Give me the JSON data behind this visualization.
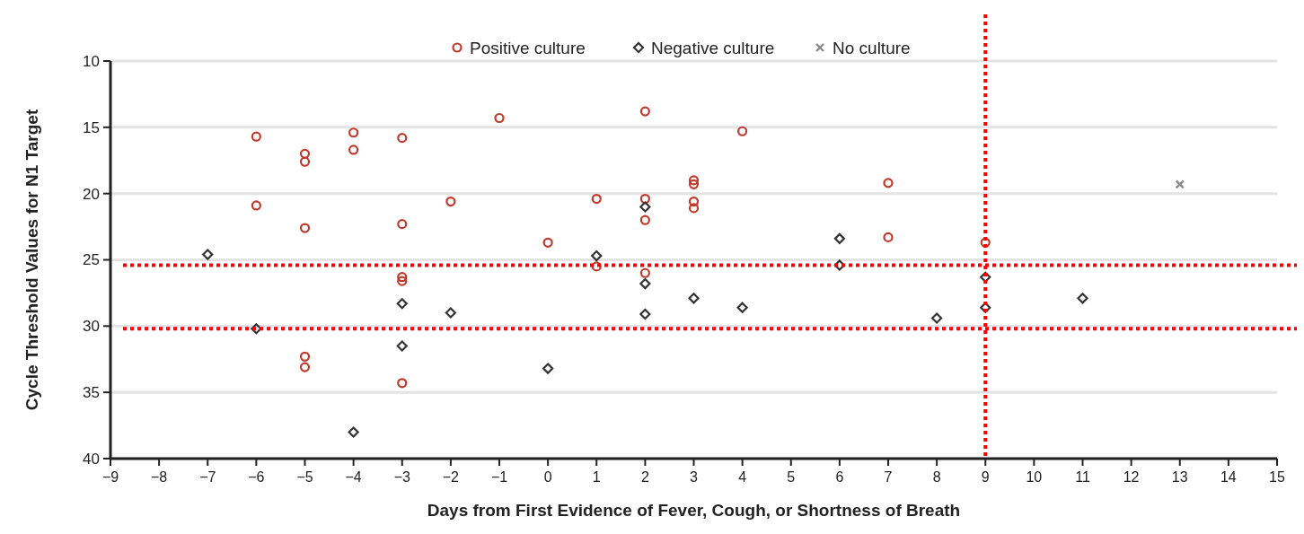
{
  "chart_data": {
    "type": "scatter",
    "xlabel": "Days from First Evidence of Fever, Cough, or Shortness of Breath",
    "ylabel": "Cycle Threshold Values for N1 Target",
    "xlim": [
      -9,
      15
    ],
    "xticks": [
      {
        "value": -9,
        "label": "−9"
      },
      {
        "value": -8,
        "label": "−8"
      },
      {
        "value": -7,
        "label": "−7"
      },
      {
        "value": -6,
        "label": "−6"
      },
      {
        "value": -5,
        "label": "−5"
      },
      {
        "value": -4,
        "label": "−4"
      },
      {
        "value": -3,
        "label": "−3"
      },
      {
        "value": -2,
        "label": "−2"
      },
      {
        "value": -1,
        "label": "−1"
      },
      0,
      1,
      2,
      3,
      4,
      5,
      6,
      7,
      8,
      9,
      10,
      11,
      12,
      13,
      14,
      15
    ],
    "ylim": [
      40,
      10
    ],
    "yticks": [
      10,
      15,
      20,
      25,
      30,
      35,
      40
    ],
    "grid": "y",
    "legend": "top",
    "series": [
      {
        "name": "Positive culture",
        "color": "#c0392b",
        "marker": "circle",
        "x": [
          -6,
          -6,
          -5,
          -5,
          -5,
          -5,
          -5,
          -4,
          -4,
          -3,
          -3,
          -3,
          -3,
          -3,
          -2,
          -1,
          0,
          1,
          1,
          2,
          2,
          2,
          2,
          3,
          3,
          3,
          3,
          4,
          7,
          7,
          9
        ],
        "values": [
          15.7,
          20.9,
          17.0,
          17.6,
          22.6,
          32.3,
          33.1,
          15.4,
          16.7,
          15.8,
          22.3,
          26.3,
          26.6,
          34.3,
          20.6,
          14.3,
          23.7,
          20.4,
          25.5,
          13.8,
          20.4,
          22.0,
          26.0,
          19.0,
          19.3,
          20.6,
          21.1,
          15.3,
          19.2,
          23.3,
          23.7
        ]
      },
      {
        "name": "Negative culture",
        "color": "#333333",
        "marker": "diamond",
        "x": [
          -7,
          -6,
          -4,
          -3,
          -3,
          -2,
          0,
          1,
          2,
          2,
          2,
          3,
          4,
          6,
          6,
          8,
          9,
          9,
          11
        ],
        "values": [
          24.6,
          30.2,
          38.0,
          28.3,
          31.5,
          29.0,
          33.2,
          24.7,
          21.0,
          26.8,
          29.1,
          27.9,
          28.6,
          23.4,
          25.4,
          29.4,
          26.3,
          28.6,
          27.9
        ]
      },
      {
        "name": "No culture",
        "color": "#888888",
        "marker": "cross",
        "x": [
          13
        ],
        "values": [
          19.3
        ]
      }
    ],
    "ref_lines": [
      {
        "axis": "y",
        "value": 25.4,
        "color": "#ff0000",
        "line_style": "dotted"
      },
      {
        "axis": "y",
        "value": 30.2,
        "color": "#ff0000",
        "line_style": "dotted"
      },
      {
        "axis": "x",
        "value": 9,
        "color": "#ff0000",
        "line_style": "dotted"
      }
    ]
  }
}
